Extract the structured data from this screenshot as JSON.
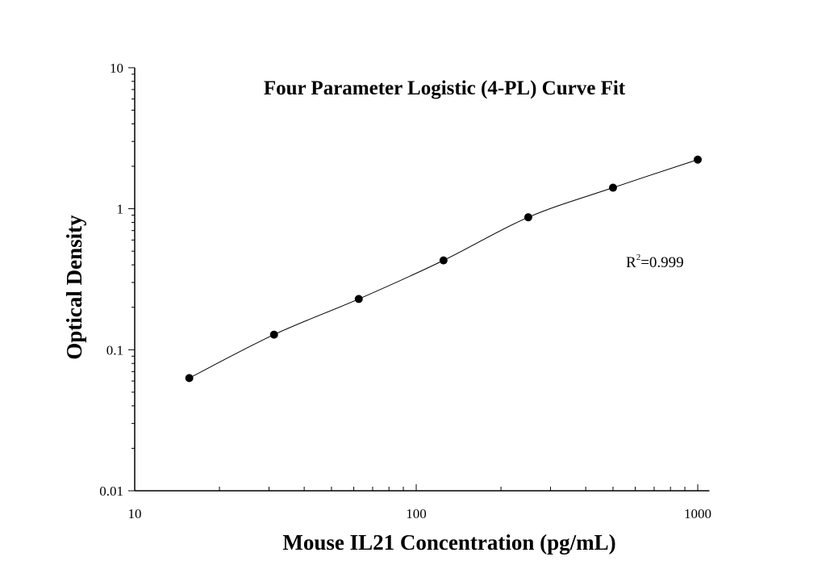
{
  "chart_data": {
    "type": "scatter",
    "title": "Four Parameter Logistic (4-PL) Curve Fit",
    "xlabel": "Mouse IL21 Concentration (pg/mL)",
    "ylabel": "Optical Density",
    "x_scale": "log",
    "y_scale": "log",
    "xlim": [
      10,
      1100
    ],
    "ylim": [
      0.01,
      10
    ],
    "x_ticks": [
      "10",
      "100",
      "1000"
    ],
    "y_ticks": [
      "0.01",
      "0.1",
      "1",
      "10"
    ],
    "grid": false,
    "fit": "4-PL curve",
    "annotation": {
      "r_label": "R",
      "r_sup": "2",
      "r_value": "=0.999"
    },
    "series": [
      {
        "x": [
          15.625,
          31.25,
          62.5,
          125,
          250,
          500,
          1000
        ],
        "y": [
          0.063,
          0.128,
          0.229,
          0.43,
          0.87,
          1.41,
          2.23
        ]
      }
    ],
    "colors": {
      "points": "#000000",
      "line": "#000000"
    }
  }
}
